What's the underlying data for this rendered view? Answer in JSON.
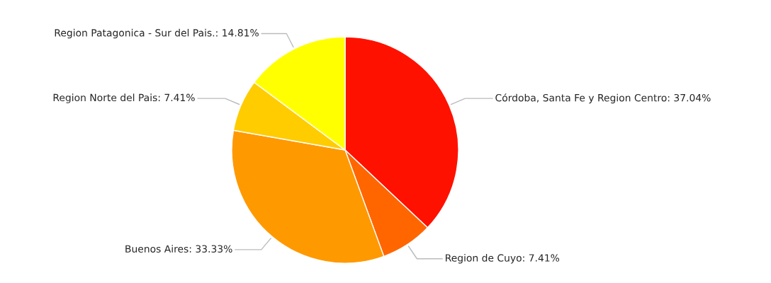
{
  "chart_data": {
    "type": "pie",
    "categories": [
      "Córdoba, Santa Fe y Region Centro",
      "Region de Cuyo",
      "Buenos Aires",
      "Region Norte del Pais",
      "Region Patagonica - Sur del Pais."
    ],
    "values": [
      37.04,
      7.41,
      33.33,
      7.41,
      14.81
    ],
    "value_labels": [
      "37.04%",
      "7.41%",
      "33.33%",
      "7.41%",
      "14.81%"
    ],
    "colors": [
      "#ff1100",
      "#ff6600",
      "#ff9900",
      "#ffcc00",
      "#ffff00"
    ],
    "legend": false
  }
}
